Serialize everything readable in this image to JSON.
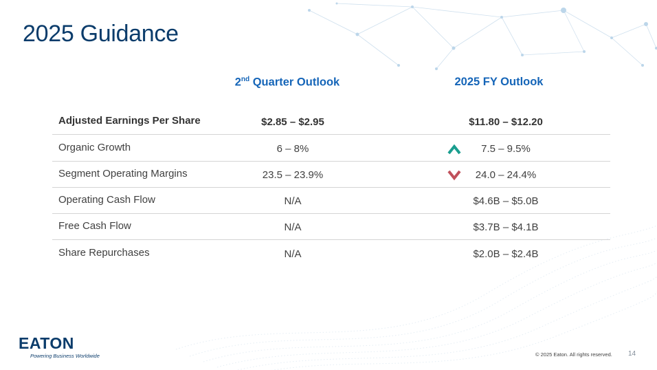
{
  "slide": {
    "title": "2025 Guidance",
    "columns": {
      "quarter": {
        "prefix": "2",
        "superscript": "nd",
        "suffix": " Quarter Outlook"
      },
      "fy": "2025 FY Outlook"
    },
    "rows": [
      {
        "label": "Adjusted Earnings Per Share",
        "q": "$2.85 – $2.95",
        "fy": "$11.80 – $12.20",
        "indicator": "none"
      },
      {
        "label": "Organic Growth",
        "q": "6 – 8%",
        "fy": "7.5 – 9.5%",
        "indicator": "up"
      },
      {
        "label": "Segment Operating Margins",
        "q": "23.5 – 23.9%",
        "fy": "24.0 – 24.4%",
        "indicator": "down"
      },
      {
        "label": "Operating Cash Flow",
        "q": "N/A",
        "fy": "$4.6B – $5.0B",
        "indicator": "none"
      },
      {
        "label": "Free Cash Flow",
        "q": "N/A",
        "fy": "$3.7B – $4.1B",
        "indicator": "none"
      },
      {
        "label": "Share Repurchases",
        "q": "N/A",
        "fy": "$2.0B – $2.4B",
        "indicator": "none"
      }
    ],
    "indicator_colors": {
      "up": "#1a9e8f",
      "down": "#c0505b"
    }
  },
  "footer": {
    "logo_word": "EATON",
    "logo_tagline": "Powering Business Worldwide",
    "copyright": "© 2025 Eaton. All rights reserved.",
    "page_number": "14"
  }
}
